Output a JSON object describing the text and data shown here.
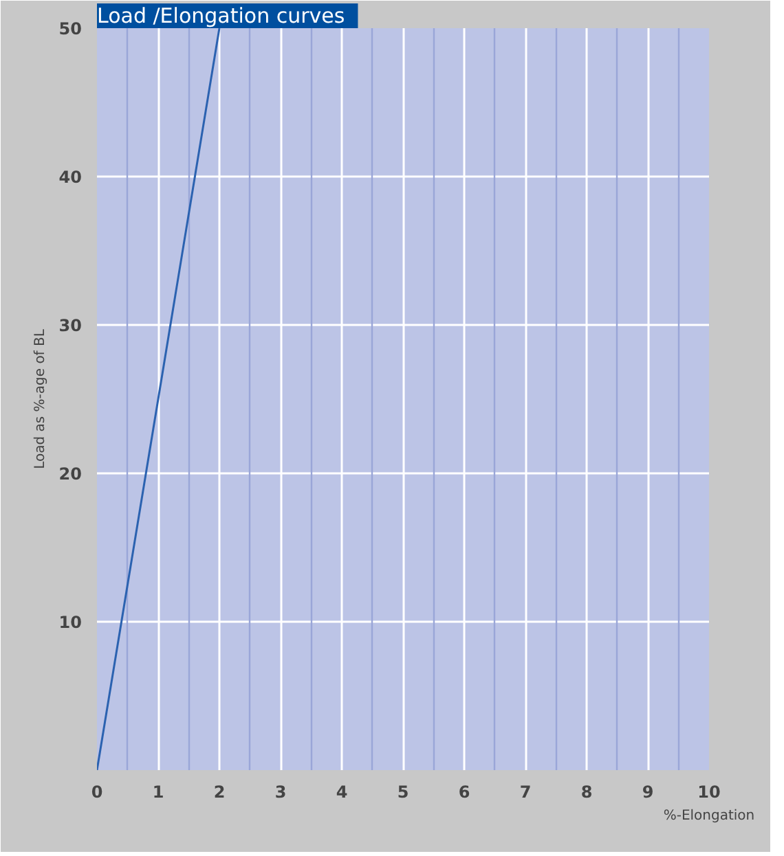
{
  "chart_data": {
    "type": "line",
    "title": "Load   /Elongation curves",
    "xlabel": "%-Elongation",
    "ylabel": "Load as %-age of BL",
    "x": [
      0,
      2
    ],
    "series": [
      {
        "color": "#2b62b0",
        "values": [
          0,
          50
        ]
      }
    ],
    "xlim": [
      0,
      10
    ],
    "xticks": [
      0,
      {
        "value": 0.5,
        "label": null
      },
      1,
      {
        "value": 1.5,
        "label": null
      },
      2,
      {
        "value": 2.5,
        "label": null
      },
      3,
      {
        "value": 3.5,
        "label": null
      },
      4,
      {
        "value": 4.5,
        "label": null
      },
      5,
      {
        "value": 5.5,
        "label": null
      },
      6,
      {
        "value": 6.5,
        "label": null
      },
      7,
      {
        "value": 7.5,
        "label": null
      },
      8,
      {
        "value": 8.5,
        "label": null
      },
      9,
      {
        "value": 9.5,
        "label": null
      },
      10
    ],
    "ylim": [
      0,
      50
    ],
    "yticks": [
      {
        "value": 0,
        "label": null
      },
      10,
      20,
      30,
      40,
      50
    ],
    "grid": true,
    "line_style": "solid"
  }
}
